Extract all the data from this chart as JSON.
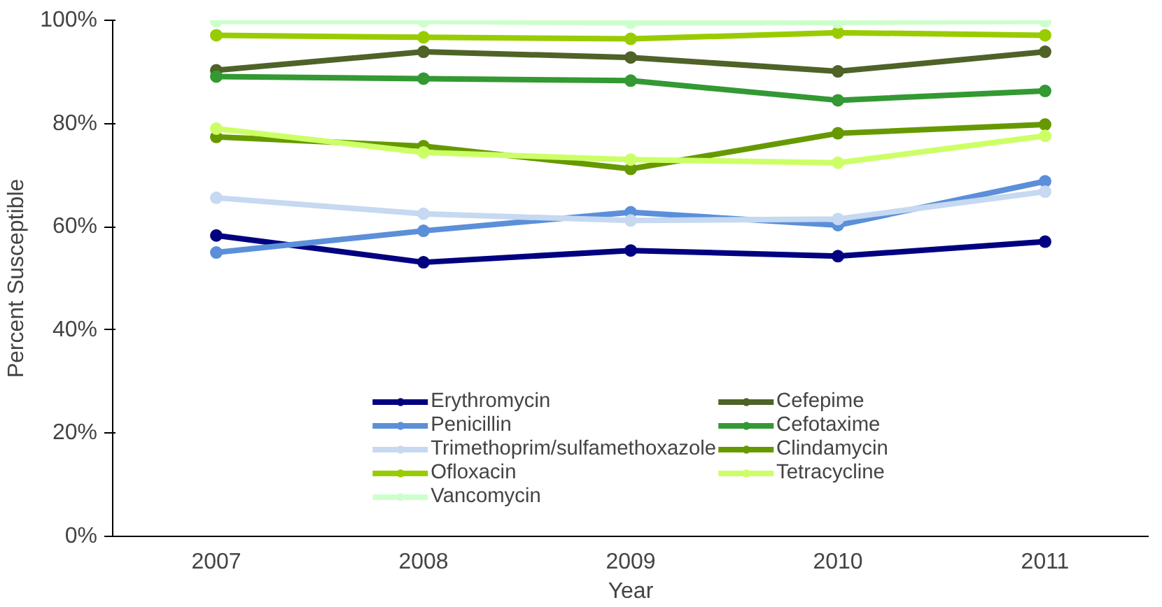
{
  "chart_data": {
    "type": "line",
    "xlabel": "Year",
    "ylabel": "Percent Susceptible",
    "categories": [
      "2007",
      "2008",
      "2009",
      "2010",
      "2011"
    ],
    "ylim": [
      0,
      100
    ],
    "yticks": [
      {
        "value": 0,
        "label": "0%"
      },
      {
        "value": 20,
        "label": "20%"
      },
      {
        "value": 40,
        "label": "40%"
      },
      {
        "value": 60,
        "label": "60%"
      },
      {
        "value": 80,
        "label": "80%"
      },
      {
        "value": 100,
        "label": "100%"
      }
    ],
    "grid": false,
    "legend": "bottom",
    "marker": "circle",
    "line_style": "solid",
    "series": [
      {
        "name": "Erythromycin",
        "color": "#000080",
        "values": [
          58.3,
          53.1,
          55.4,
          54.3,
          57.1
        ]
      },
      {
        "name": "Penicillin",
        "color": "#5b8fd9",
        "values": [
          55.0,
          59.2,
          62.8,
          60.3,
          68.8
        ]
      },
      {
        "name": "Trimethoprim/sulfamethoxazole",
        "color": "#c6d9f1",
        "values": [
          65.6,
          62.5,
          61.2,
          61.5,
          66.8
        ]
      },
      {
        "name": "Ofloxacin",
        "color": "#99cc00",
        "values": [
          97.1,
          96.7,
          96.4,
          97.6,
          97.1
        ]
      },
      {
        "name": "Vancomycin",
        "color": "#ccffcc",
        "values": [
          99.8,
          99.8,
          99.5,
          99.6,
          99.8
        ]
      },
      {
        "name": "Cefepime",
        "color": "#4f6228",
        "values": [
          90.3,
          93.9,
          92.8,
          90.1,
          93.9
        ]
      },
      {
        "name": "Cefotaxime",
        "color": "#339933",
        "values": [
          89.1,
          88.7,
          88.3,
          84.5,
          86.3
        ]
      },
      {
        "name": "Clindamycin",
        "color": "#669900",
        "values": [
          77.4,
          75.6,
          71.2,
          78.1,
          79.8
        ]
      },
      {
        "name": "Tetracycline",
        "color": "#ccff66",
        "values": [
          79.0,
          74.4,
          73.0,
          72.4,
          77.6
        ]
      }
    ]
  }
}
